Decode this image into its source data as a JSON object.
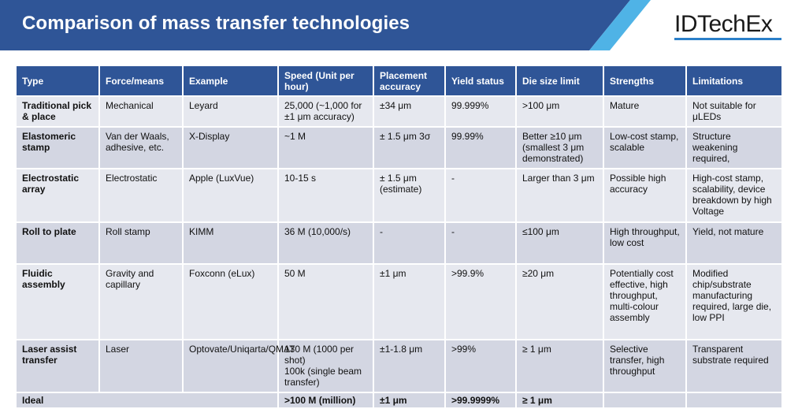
{
  "header": {
    "title": "Comparison of mass transfer technologies",
    "logo": "IDTechEx",
    "colors": {
      "banner": "#2f5597",
      "stripe": "#4fb3e6",
      "logo_bar": "#2a7fc9"
    }
  },
  "table": {
    "columns": [
      "Type",
      "Force/means",
      "Example",
      "Speed (Unit per hour)",
      "Placement accuracy",
      "Yield status",
      "Die size limit",
      "Strengths",
      "Limitations"
    ],
    "rows": [
      [
        "Traditional pick & place",
        "Mechanical",
        "Leyard",
        "25,000 (~1,000 for ±1 μm accuracy)",
        "±34 μm",
        "99.999%",
        ">100 μm",
        "Mature",
        "Not suitable for μLEDs"
      ],
      [
        "Elastomeric stamp",
        "Van der Waals, adhesive, etc.",
        "X-Display",
        "~1 M",
        "± 1.5 μm 3σ",
        "99.99%",
        "Better ≥10 μm (smallest 3 μm demonstrated)",
        "Low-cost stamp, scalable",
        "Structure weakening required,"
      ],
      [
        "Electrostatic array",
        "Electrostatic",
        "Apple (LuxVue)",
        "10-15 s",
        "± 1.5 μm (estimate)",
        "-",
        "Larger than 3 μm",
        "Possible high accuracy",
        "High-cost stamp, scalability, device breakdown by high Voltage"
      ],
      [
        "Roll to plate",
        "Roll stamp",
        "KIMM",
        "36 M (10,000/s)",
        "-",
        "-",
        "≤100 μm",
        "High throughput, low cost",
        "Yield, not mature"
      ],
      [
        "Fluidic assembly",
        "Gravity and capillary",
        "Foxconn (eLux)",
        "50 M",
        "±1 μm",
        ">99.9%",
        "≥20 μm",
        "Potentially cost effective, high throughput, multi-colour assembly",
        "Modified chip/substrate manufacturing required, large die, low PPI"
      ],
      [
        "Laser assist transfer",
        "Laser",
        "Optovate/Uniqarta/QMAT",
        "130 M (1000 per shot)\n100k (single beam transfer)",
        "±1-1.8 μm",
        ">99%",
        "≥ 1 μm",
        "Selective transfer, high throughput",
        "Transparent substrate required"
      ]
    ],
    "ideal": {
      "label": "Ideal",
      "speed": ">100 M (million)",
      "accuracy": "±1 μm",
      "yield": ">99.9999%",
      "die_size": "≥ 1 μm",
      "strengths": "",
      "limitations": ""
    }
  }
}
